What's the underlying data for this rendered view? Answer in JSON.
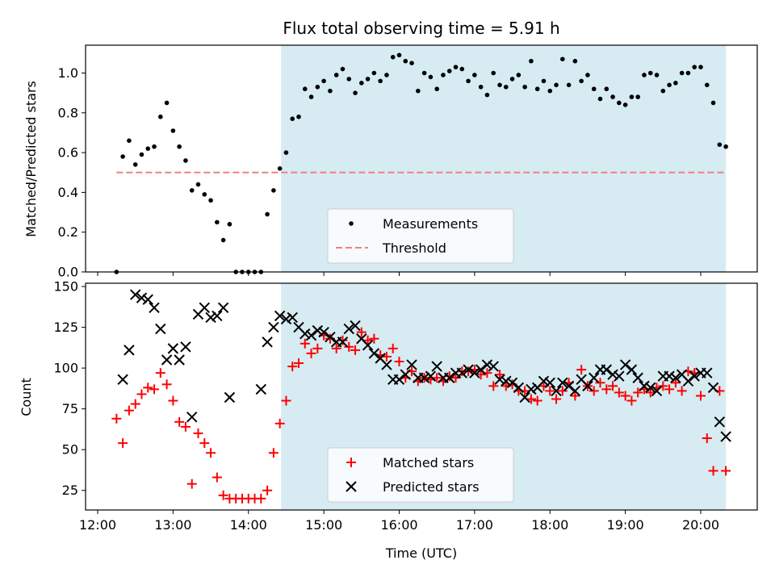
{
  "chart_data": [
    {
      "type": "scatter",
      "title": "Flux total observing time = 5.91 h",
      "ylabel": "Matched/Predicted stars",
      "ylim": [
        0,
        1.14
      ],
      "yticks": [
        0.0,
        0.2,
        0.4,
        0.6,
        0.8,
        1.0
      ],
      "ytick_labels": [
        "0.0",
        "0.2",
        "0.4",
        "0.6",
        "0.8",
        "1.0"
      ],
      "grid": false,
      "legend_position": "lower-center",
      "shaded_region": {
        "from": "14:26",
        "to": "20:20",
        "color": "#add8e6"
      },
      "threshold": {
        "name": "Threshold",
        "value": 0.5,
        "from": "12:15",
        "to": "20:20",
        "color": "#f08080"
      },
      "series": [
        {
          "name": "Measurements",
          "marker": "dot",
          "color": "#000000",
          "x": [
            "12:15",
            "12:20",
            "12:25",
            "12:30",
            "12:35",
            "12:40",
            "12:45",
            "12:50",
            "12:55",
            "13:00",
            "13:05",
            "13:10",
            "13:15",
            "13:20",
            "13:25",
            "13:30",
            "13:35",
            "13:40",
            "13:45",
            "13:50",
            "13:55",
            "14:00",
            "14:05",
            "14:10",
            "14:15",
            "14:20",
            "14:25",
            "14:30",
            "14:35",
            "14:40",
            "14:45",
            "14:50",
            "14:55",
            "15:00",
            "15:05",
            "15:10",
            "15:15",
            "15:20",
            "15:25",
            "15:30",
            "15:35",
            "15:40",
            "15:45",
            "15:50",
            "15:55",
            "16:00",
            "16:05",
            "16:10",
            "16:15",
            "16:20",
            "16:25",
            "16:30",
            "16:35",
            "16:40",
            "16:45",
            "16:50",
            "16:55",
            "17:00",
            "17:05",
            "17:10",
            "17:15",
            "17:20",
            "17:25",
            "17:30",
            "17:35",
            "17:40",
            "17:45",
            "17:50",
            "17:55",
            "18:00",
            "18:05",
            "18:10",
            "18:15",
            "18:20",
            "18:25",
            "18:30",
            "18:35",
            "18:40",
            "18:45",
            "18:50",
            "18:55",
            "19:00",
            "19:05",
            "19:10",
            "19:15",
            "19:20",
            "19:25",
            "19:30",
            "19:35",
            "19:40",
            "19:45",
            "19:50",
            "19:55",
            "20:00",
            "20:05",
            "20:10",
            "20:15",
            "20:20"
          ],
          "y": [
            0.0,
            0.58,
            0.66,
            0.54,
            0.59,
            0.62,
            0.63,
            0.78,
            0.85,
            0.71,
            0.63,
            0.56,
            0.41,
            0.44,
            0.39,
            0.36,
            0.25,
            0.16,
            0.24,
            0.0,
            0.0,
            0.0,
            0.0,
            0.0,
            0.29,
            0.41,
            0.52,
            0.6,
            0.77,
            0.78,
            0.92,
            0.88,
            0.93,
            0.96,
            0.91,
            0.99,
            1.02,
            0.97,
            0.9,
            0.95,
            0.97,
            1.0,
            0.96,
            0.99,
            1.08,
            1.09,
            1.06,
            1.05,
            0.91,
            1.0,
            0.98,
            0.92,
            0.99,
            1.01,
            1.03,
            1.02,
            0.96,
            0.99,
            0.93,
            0.89,
            1.0,
            0.94,
            0.93,
            0.97,
            0.99,
            0.93,
            1.06,
            0.92,
            0.96,
            0.91,
            0.94,
            1.07,
            0.94,
            1.06,
            0.96,
            0.99,
            0.92,
            0.87,
            0.92,
            0.88,
            0.85,
            0.84,
            0.88,
            0.88,
            0.99,
            1.0,
            0.99,
            0.91,
            0.94,
            0.95,
            1.0,
            1.0,
            1.03,
            1.03,
            0.94,
            0.85,
            0.64,
            0.63
          ]
        }
      ]
    },
    {
      "type": "scatter",
      "xlabel": "Time (UTC)",
      "ylabel": "Count",
      "ylim": [
        13,
        152
      ],
      "yticks": [
        25,
        50,
        75,
        100,
        125,
        150
      ],
      "ytick_labels": [
        "25",
        "50",
        "75",
        "100",
        "125",
        "150"
      ],
      "xticks": [
        "12:00",
        "13:00",
        "14:00",
        "15:00",
        "16:00",
        "17:00",
        "18:00",
        "19:00",
        "20:00"
      ],
      "grid": false,
      "legend_position": "lower-center",
      "shaded_region": {
        "from": "14:26",
        "to": "20:20",
        "color": "#add8e6"
      },
      "series": [
        {
          "name": "Matched stars",
          "marker": "plus",
          "color": "#ff0000",
          "x": [
            "12:15",
            "12:20",
            "12:25",
            "12:30",
            "12:35",
            "12:40",
            "12:45",
            "12:50",
            "12:55",
            "13:00",
            "13:05",
            "13:10",
            "13:15",
            "13:20",
            "13:25",
            "13:30",
            "13:35",
            "13:40",
            "13:45",
            "13:50",
            "13:55",
            "14:00",
            "14:05",
            "14:10",
            "14:15",
            "14:20",
            "14:25",
            "14:30",
            "14:35",
            "14:40",
            "14:45",
            "14:50",
            "14:55",
            "15:00",
            "15:05",
            "15:10",
            "15:15",
            "15:20",
            "15:25",
            "15:30",
            "15:35",
            "15:40",
            "15:45",
            "15:50",
            "15:55",
            "16:00",
            "16:05",
            "16:10",
            "16:15",
            "16:20",
            "16:25",
            "16:30",
            "16:35",
            "16:40",
            "16:45",
            "16:50",
            "16:55",
            "17:00",
            "17:05",
            "17:10",
            "17:15",
            "17:20",
            "17:25",
            "17:30",
            "17:35",
            "17:40",
            "17:45",
            "17:50",
            "17:55",
            "18:00",
            "18:05",
            "18:10",
            "18:15",
            "18:20",
            "18:25",
            "18:30",
            "18:35",
            "18:40",
            "18:45",
            "18:50",
            "18:55",
            "19:00",
            "19:05",
            "19:10",
            "19:15",
            "19:20",
            "19:25",
            "19:30",
            "19:35",
            "19:40",
            "19:45",
            "19:50",
            "19:55",
            "20:00",
            "20:05",
            "20:10",
            "20:15",
            "20:20"
          ],
          "y": [
            69,
            54,
            74,
            78,
            84,
            88,
            87,
            97,
            90,
            80,
            67,
            64,
            29,
            60,
            54,
            48,
            33,
            22,
            20,
            20,
            20,
            20,
            20,
            20,
            25,
            48,
            66,
            80,
            101,
            103,
            115,
            109,
            112,
            120,
            118,
            112,
            117,
            113,
            111,
            122,
            117,
            118,
            108,
            107,
            112,
            104,
            94,
            98,
            92,
            94,
            93,
            94,
            92,
            95,
            94,
            98,
            98,
            99,
            96,
            97,
            89,
            96,
            89,
            90,
            86,
            86,
            81,
            80,
            89,
            86,
            81,
            86,
            91,
            83,
            99,
            89,
            86,
            91,
            87,
            89,
            85,
            83,
            80,
            85,
            87,
            85,
            88,
            89,
            87,
            91,
            86,
            98,
            97,
            83,
            57,
            37,
            86,
            37
          ]
        },
        {
          "name": "Predicted stars",
          "marker": "x",
          "color": "#000000",
          "x": [
            "12:20",
            "12:25",
            "12:30",
            "12:35",
            "12:40",
            "12:45",
            "12:50",
            "12:55",
            "13:00",
            "13:05",
            "13:10",
            "13:15",
            "13:20",
            "13:25",
            "13:30",
            "13:35",
            "13:40",
            "13:45",
            "14:10",
            "14:15",
            "14:20",
            "14:25",
            "14:30",
            "14:35",
            "14:40",
            "14:45",
            "14:50",
            "14:55",
            "15:00",
            "15:05",
            "15:10",
            "15:15",
            "15:20",
            "15:25",
            "15:30",
            "15:35",
            "15:40",
            "15:45",
            "15:50",
            "15:55",
            "16:00",
            "16:05",
            "16:10",
            "16:15",
            "16:20",
            "16:25",
            "16:30",
            "16:35",
            "16:40",
            "16:45",
            "16:50",
            "16:55",
            "17:00",
            "17:05",
            "17:10",
            "17:15",
            "17:20",
            "17:25",
            "17:30",
            "17:35",
            "17:40",
            "17:45",
            "17:50",
            "17:55",
            "18:00",
            "18:05",
            "18:10",
            "18:15",
            "18:20",
            "18:25",
            "18:30",
            "18:35",
            "18:40",
            "18:45",
            "18:50",
            "18:55",
            "19:00",
            "19:05",
            "19:10",
            "19:15",
            "19:20",
            "19:25",
            "19:30",
            "19:35",
            "19:40",
            "19:45",
            "19:50",
            "19:55",
            "20:00",
            "20:05",
            "20:10",
            "20:15",
            "20:20"
          ],
          "y": [
            93,
            111,
            145,
            143,
            142,
            137,
            124,
            105,
            112,
            105,
            113,
            70,
            133,
            137,
            131,
            132,
            137,
            82,
            87,
            116,
            125,
            132,
            130,
            131,
            125,
            121,
            120,
            123,
            122,
            119,
            116,
            116,
            124,
            126,
            118,
            114,
            109,
            106,
            102,
            93,
            93,
            96,
            102,
            94,
            94,
            95,
            101,
            94,
            94,
            97,
            97,
            99,
            97,
            99,
            102,
            101,
            93,
            92,
            91,
            88,
            82,
            87,
            88,
            92,
            91,
            86,
            91,
            89,
            86,
            93,
            89,
            94,
            99,
            99,
            96,
            95,
            102,
            99,
            94,
            89,
            88,
            86,
            95,
            95,
            94,
            96,
            92,
            95,
            97,
            97,
            88,
            67,
            58
          ]
        }
      ]
    }
  ]
}
